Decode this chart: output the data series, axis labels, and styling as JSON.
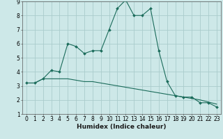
{
  "title": "",
  "xlabel": "Humidex (Indice chaleur)",
  "background_color": "#cde8e8",
  "grid_color": "#aacccc",
  "line_color": "#1a6b5a",
  "x_data": [
    0,
    1,
    2,
    3,
    4,
    5,
    6,
    7,
    8,
    9,
    10,
    11,
    12,
    13,
    14,
    15,
    16,
    17,
    18,
    19,
    20,
    21,
    22,
    23
  ],
  "line1_y": [
    3.2,
    3.2,
    3.5,
    4.1,
    4.0,
    6.0,
    5.8,
    5.3,
    5.5,
    5.5,
    7.0,
    8.5,
    9.1,
    8.0,
    8.0,
    8.5,
    5.5,
    3.3,
    2.3,
    2.2,
    2.2,
    1.8,
    1.8,
    1.5
  ],
  "line2_y": [
    3.2,
    3.2,
    3.5,
    3.5,
    3.5,
    3.5,
    3.4,
    3.3,
    3.3,
    3.2,
    3.1,
    3.0,
    2.9,
    2.8,
    2.7,
    2.6,
    2.5,
    2.4,
    2.3,
    2.2,
    2.1,
    2.0,
    1.85,
    1.7
  ],
  "xlim": [
    -0.5,
    23.5
  ],
  "ylim": [
    1,
    9
  ],
  "yticks": [
    1,
    2,
    3,
    4,
    5,
    6,
    7,
    8,
    9
  ],
  "xticks": [
    0,
    1,
    2,
    3,
    4,
    5,
    6,
    7,
    8,
    9,
    10,
    11,
    12,
    13,
    14,
    15,
    16,
    17,
    18,
    19,
    20,
    21,
    22,
    23
  ],
  "label_fontsize": 6.5,
  "tick_fontsize": 5.5
}
